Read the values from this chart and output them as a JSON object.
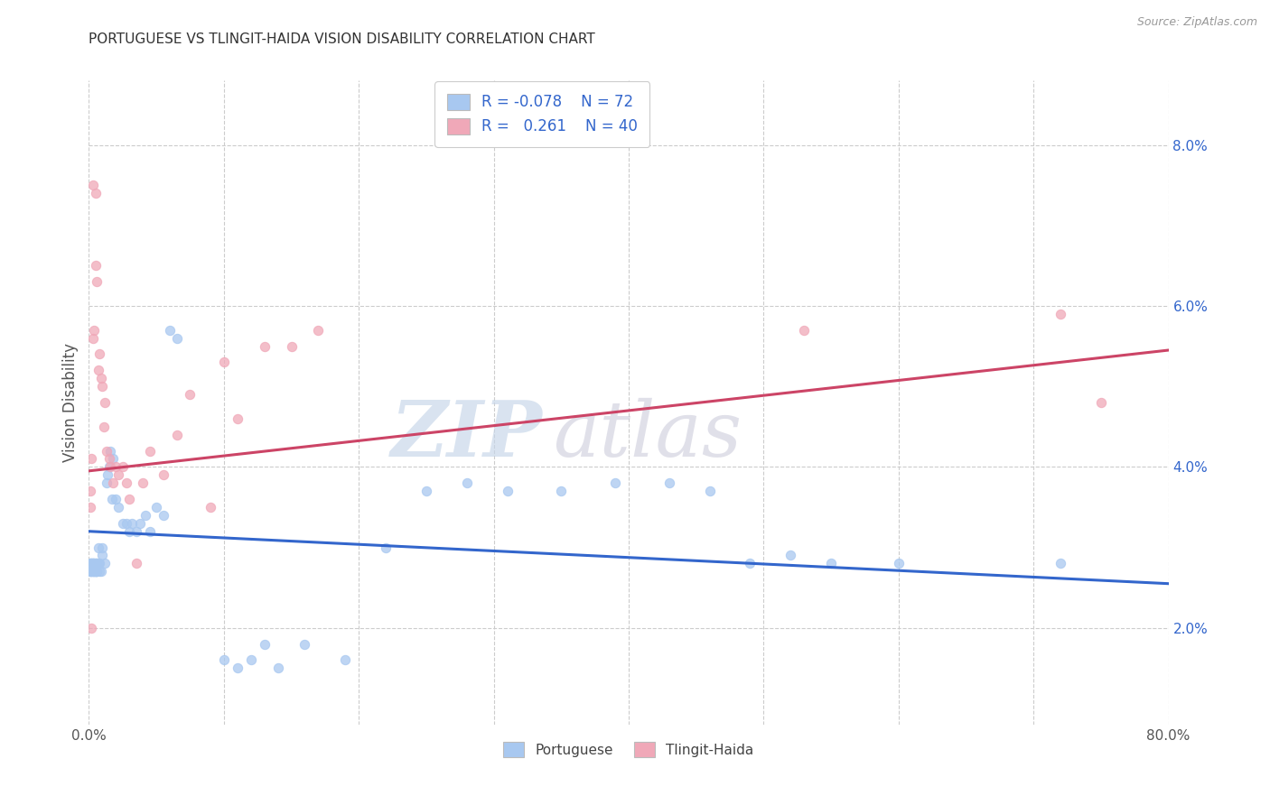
{
  "title": "PORTUGUESE VS TLINGIT-HAIDA VISION DISABILITY CORRELATION CHART",
  "source": "Source: ZipAtlas.com",
  "ylabel": "Vision Disability",
  "xlim": [
    0.0,
    0.8
  ],
  "ylim": [
    0.008,
    0.088
  ],
  "yticks": [
    0.02,
    0.04,
    0.06,
    0.08
  ],
  "ytick_labels": [
    "2.0%",
    "4.0%",
    "6.0%",
    "8.0%"
  ],
  "xticks": [
    0.0,
    0.1,
    0.2,
    0.3,
    0.4,
    0.5,
    0.6,
    0.7,
    0.8
  ],
  "blue_color": "#A8C8F0",
  "pink_color": "#F0A8B8",
  "line_blue": "#3366CC",
  "line_pink": "#CC4466",
  "watermark_zip": "ZIP",
  "watermark_atlas": "atlas",
  "portuguese_x": [
    0.001,
    0.001,
    0.001,
    0.001,
    0.002,
    0.002,
    0.002,
    0.002,
    0.003,
    0.003,
    0.003,
    0.003,
    0.003,
    0.004,
    0.004,
    0.004,
    0.005,
    0.005,
    0.005,
    0.005,
    0.005,
    0.006,
    0.006,
    0.006,
    0.007,
    0.007,
    0.008,
    0.008,
    0.009,
    0.01,
    0.01,
    0.012,
    0.013,
    0.014,
    0.015,
    0.016,
    0.017,
    0.018,
    0.02,
    0.022,
    0.025,
    0.028,
    0.03,
    0.032,
    0.035,
    0.038,
    0.042,
    0.045,
    0.05,
    0.055,
    0.06,
    0.065,
    0.1,
    0.11,
    0.12,
    0.13,
    0.14,
    0.16,
    0.19,
    0.22,
    0.25,
    0.28,
    0.31,
    0.35,
    0.39,
    0.43,
    0.46,
    0.49,
    0.52,
    0.55,
    0.6,
    0.72
  ],
  "portuguese_y": [
    0.027,
    0.027,
    0.028,
    0.028,
    0.027,
    0.027,
    0.028,
    0.028,
    0.027,
    0.027,
    0.028,
    0.028,
    0.028,
    0.027,
    0.027,
    0.028,
    0.027,
    0.027,
    0.027,
    0.028,
    0.028,
    0.027,
    0.027,
    0.028,
    0.028,
    0.03,
    0.027,
    0.028,
    0.027,
    0.029,
    0.03,
    0.028,
    0.038,
    0.039,
    0.04,
    0.042,
    0.036,
    0.041,
    0.036,
    0.035,
    0.033,
    0.033,
    0.032,
    0.033,
    0.032,
    0.033,
    0.034,
    0.032,
    0.035,
    0.034,
    0.057,
    0.056,
    0.016,
    0.015,
    0.016,
    0.018,
    0.015,
    0.018,
    0.016,
    0.03,
    0.037,
    0.038,
    0.037,
    0.037,
    0.038,
    0.038,
    0.037,
    0.028,
    0.029,
    0.028,
    0.028,
    0.028
  ],
  "tlingit_x": [
    0.001,
    0.001,
    0.002,
    0.002,
    0.003,
    0.003,
    0.004,
    0.005,
    0.005,
    0.006,
    0.007,
    0.008,
    0.009,
    0.01,
    0.011,
    0.012,
    0.013,
    0.015,
    0.016,
    0.018,
    0.02,
    0.022,
    0.025,
    0.028,
    0.03,
    0.035,
    0.04,
    0.045,
    0.055,
    0.065,
    0.075,
    0.09,
    0.1,
    0.11,
    0.13,
    0.15,
    0.17,
    0.53,
    0.72,
    0.75
  ],
  "tlingit_y": [
    0.035,
    0.037,
    0.02,
    0.041,
    0.056,
    0.075,
    0.057,
    0.074,
    0.065,
    0.063,
    0.052,
    0.054,
    0.051,
    0.05,
    0.045,
    0.048,
    0.042,
    0.041,
    0.04,
    0.038,
    0.04,
    0.039,
    0.04,
    0.038,
    0.036,
    0.028,
    0.038,
    0.042,
    0.039,
    0.044,
    0.049,
    0.035,
    0.053,
    0.046,
    0.055,
    0.055,
    0.057,
    0.057,
    0.059,
    0.048
  ],
  "blue_line_x0": 0.0,
  "blue_line_y0": 0.032,
  "blue_line_x1": 0.8,
  "blue_line_y1": 0.0255,
  "pink_line_x0": 0.0,
  "pink_line_y0": 0.0395,
  "pink_line_x1": 0.8,
  "pink_line_y1": 0.0545
}
